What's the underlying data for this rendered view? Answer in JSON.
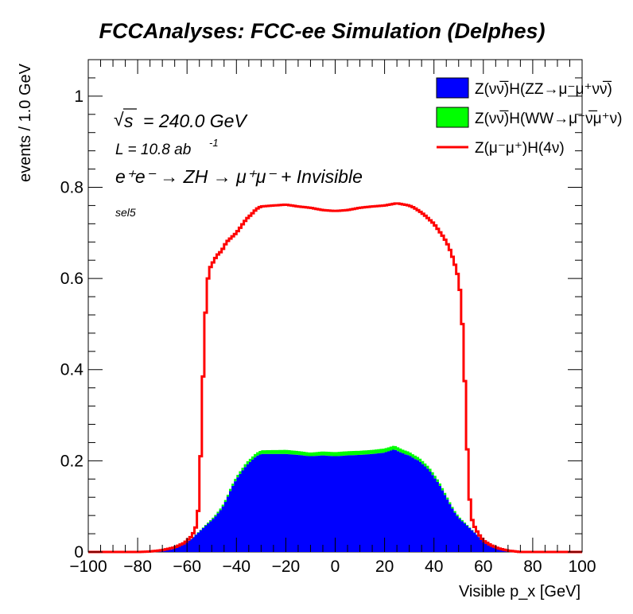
{
  "chart_data": {
    "type": "area",
    "title": "FCCAnalyses: FCC-ee Simulation (Delphes)",
    "xlabel": "Visible p_x [GeV]",
    "ylabel": "events / 1.0 GeV",
    "xlim": [
      -100,
      100
    ],
    "ylim": [
      0,
      1.08
    ],
    "x_ticks": [
      "−100",
      "−80",
      "−60",
      "−40",
      "−20",
      "0",
      "20",
      "40",
      "60",
      "80",
      "100"
    ],
    "y_ticks": [
      "0",
      "0.2",
      "0.4",
      "0.6",
      "0.8",
      "1"
    ],
    "annotations": {
      "sqrt_s": "= 240.0 GeV",
      "lumi": "L = 10.8 ab",
      "lumi_exp": "-1",
      "process": "e⁺e⁻ → ZH → μ⁺μ⁻ + Invisible",
      "selection": "sel5"
    },
    "legend_position": "top-right",
    "legend": [
      {
        "label": "Z(νν̅)H(ZZ→μ⁻μ⁺νν̅)",
        "style": "fill",
        "color": "#0000ff"
      },
      {
        "label": "Z(νν̅)H(WW→μ⁻ν̅μ⁺ν)",
        "style": "fill",
        "color": "#00ff00"
      },
      {
        "label": "Z(μ⁻μ⁺)H(4ν)",
        "style": "line",
        "color": "#ff0000"
      }
    ],
    "series": [
      {
        "style": "stacked-fill",
        "color": "#0000ff",
        "points": [
          [
            -100,
            0
          ],
          [
            -75,
            0
          ],
          [
            -70,
            0.002
          ],
          [
            -66,
            0.006
          ],
          [
            -62,
            0.015
          ],
          [
            -58,
            0.03
          ],
          [
            -55,
            0.045
          ],
          [
            -52,
            0.06
          ],
          [
            -49,
            0.075
          ],
          [
            -46,
            0.095
          ],
          [
            -44,
            0.115
          ],
          [
            -42,
            0.14
          ],
          [
            -40,
            0.16
          ],
          [
            -38,
            0.175
          ],
          [
            -36,
            0.19
          ],
          [
            -34,
            0.2
          ],
          [
            -32,
            0.21
          ],
          [
            -30,
            0.215
          ],
          [
            -25,
            0.215
          ],
          [
            -20,
            0.215
          ],
          [
            -15,
            0.213
          ],
          [
            -10,
            0.21
          ],
          [
            -5,
            0.212
          ],
          [
            0,
            0.21
          ],
          [
            5,
            0.212
          ],
          [
            10,
            0.213
          ],
          [
            15,
            0.215
          ],
          [
            20,
            0.218
          ],
          [
            24,
            0.225
          ],
          [
            28,
            0.215
          ],
          [
            30,
            0.212
          ],
          [
            32,
            0.205
          ],
          [
            34,
            0.2
          ],
          [
            36,
            0.19
          ],
          [
            38,
            0.18
          ],
          [
            40,
            0.165
          ],
          [
            42,
            0.15
          ],
          [
            44,
            0.13
          ],
          [
            46,
            0.11
          ],
          [
            48,
            0.09
          ],
          [
            50,
            0.075
          ],
          [
            53,
            0.06
          ],
          [
            56,
            0.045
          ],
          [
            59,
            0.03
          ],
          [
            62,
            0.018
          ],
          [
            65,
            0.008
          ],
          [
            70,
            0.003
          ],
          [
            75,
            0
          ],
          [
            100,
            0
          ]
        ]
      },
      {
        "style": "stacked-fill",
        "color": "#00ff00",
        "points": [
          [
            -100,
            0
          ],
          [
            -60,
            0
          ],
          [
            -55,
            0.001
          ],
          [
            -45,
            0.004
          ],
          [
            -30,
            0.008
          ],
          [
            -20,
            0.009
          ],
          [
            -10,
            0.008
          ],
          [
            0,
            0.009
          ],
          [
            10,
            0.009
          ],
          [
            20,
            0.009
          ],
          [
            30,
            0.008
          ],
          [
            40,
            0.006
          ],
          [
            50,
            0.003
          ],
          [
            55,
            0.001
          ],
          [
            60,
            0
          ],
          [
            100,
            0
          ]
        ]
      },
      {
        "style": "step-line",
        "color": "#ff0000",
        "points": [
          [
            -100,
            0
          ],
          [
            -80,
            0
          ],
          [
            -75,
            0.001
          ],
          [
            -70,
            0.004
          ],
          [
            -65,
            0.01
          ],
          [
            -61,
            0.02
          ],
          [
            -58,
            0.035
          ],
          [
            -56,
            0.06
          ],
          [
            -55,
            0.12
          ],
          [
            -54,
            0.3
          ],
          [
            -53,
            0.47
          ],
          [
            -52,
            0.58
          ],
          [
            -51,
            0.62
          ],
          [
            -50,
            0.63
          ],
          [
            -48,
            0.65
          ],
          [
            -46,
            0.66
          ],
          [
            -44,
            0.68
          ],
          [
            -42,
            0.69
          ],
          [
            -40,
            0.7
          ],
          [
            -38,
            0.715
          ],
          [
            -36,
            0.73
          ],
          [
            -34,
            0.74
          ],
          [
            -32,
            0.752
          ],
          [
            -30,
            0.758
          ],
          [
            -25,
            0.76
          ],
          [
            -20,
            0.762
          ],
          [
            -15,
            0.758
          ],
          [
            -10,
            0.755
          ],
          [
            -5,
            0.75
          ],
          [
            0,
            0.748
          ],
          [
            5,
            0.75
          ],
          [
            10,
            0.755
          ],
          [
            15,
            0.758
          ],
          [
            20,
            0.76
          ],
          [
            25,
            0.765
          ],
          [
            30,
            0.76
          ],
          [
            32,
            0.755
          ],
          [
            34,
            0.748
          ],
          [
            36,
            0.74
          ],
          [
            38,
            0.73
          ],
          [
            40,
            0.72
          ],
          [
            42,
            0.705
          ],
          [
            44,
            0.69
          ],
          [
            46,
            0.67
          ],
          [
            48,
            0.64
          ],
          [
            50,
            0.6
          ],
          [
            51,
            0.55
          ],
          [
            52,
            0.45
          ],
          [
            53,
            0.3
          ],
          [
            54,
            0.15
          ],
          [
            55,
            0.08
          ],
          [
            56,
            0.06
          ],
          [
            58,
            0.04
          ],
          [
            60,
            0.025
          ],
          [
            63,
            0.015
          ],
          [
            66,
            0.008
          ],
          [
            70,
            0.003
          ],
          [
            75,
            0
          ],
          [
            100,
            0
          ]
        ]
      }
    ]
  }
}
